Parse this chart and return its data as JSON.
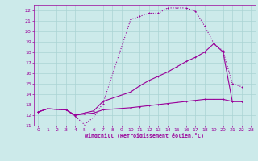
{
  "xlabel": "Windchill (Refroidissement éolien,°C)",
  "bg_color": "#cceaea",
  "grid_color": "#aad4d4",
  "line_color": "#990099",
  "xlim": [
    -0.5,
    23.5
  ],
  "ylim": [
    11,
    22.5
  ],
  "xticks": [
    0,
    1,
    2,
    3,
    4,
    5,
    6,
    7,
    8,
    9,
    10,
    11,
    12,
    13,
    14,
    15,
    16,
    17,
    18,
    19,
    20,
    21,
    22,
    23
  ],
  "yticks": [
    11,
    12,
    13,
    14,
    15,
    16,
    17,
    18,
    19,
    20,
    21,
    22
  ],
  "series1_x": [
    0,
    1,
    3,
    4,
    5,
    6,
    7,
    10,
    11,
    12,
    13,
    14,
    15,
    16,
    17,
    18,
    19,
    20,
    21,
    22
  ],
  "series1_y": [
    12.3,
    12.6,
    12.5,
    11.9,
    11.1,
    11.8,
    13.1,
    21.1,
    21.4,
    21.7,
    21.7,
    22.2,
    22.2,
    22.2,
    21.9,
    20.5,
    18.8,
    18.1,
    15.0,
    14.7
  ],
  "series2_x": [
    0,
    1,
    3,
    4,
    5,
    6,
    7,
    10,
    11,
    12,
    13,
    14,
    15,
    16,
    17,
    18,
    19,
    20,
    21,
    22
  ],
  "series2_y": [
    12.3,
    12.6,
    12.5,
    12.0,
    12.2,
    12.4,
    13.3,
    14.2,
    14.8,
    15.3,
    15.7,
    16.1,
    16.6,
    17.1,
    17.5,
    18.0,
    18.8,
    18.0,
    13.3,
    13.3
  ],
  "series3_x": [
    0,
    1,
    3,
    4,
    5,
    6,
    7,
    10,
    11,
    12,
    13,
    14,
    15,
    16,
    17,
    18,
    19,
    20,
    21,
    22
  ],
  "series3_y": [
    12.3,
    12.6,
    12.5,
    12.0,
    12.1,
    12.2,
    12.5,
    12.7,
    12.8,
    12.9,
    13.0,
    13.1,
    13.2,
    13.3,
    13.4,
    13.5,
    13.5,
    13.5,
    13.3,
    13.3
  ]
}
